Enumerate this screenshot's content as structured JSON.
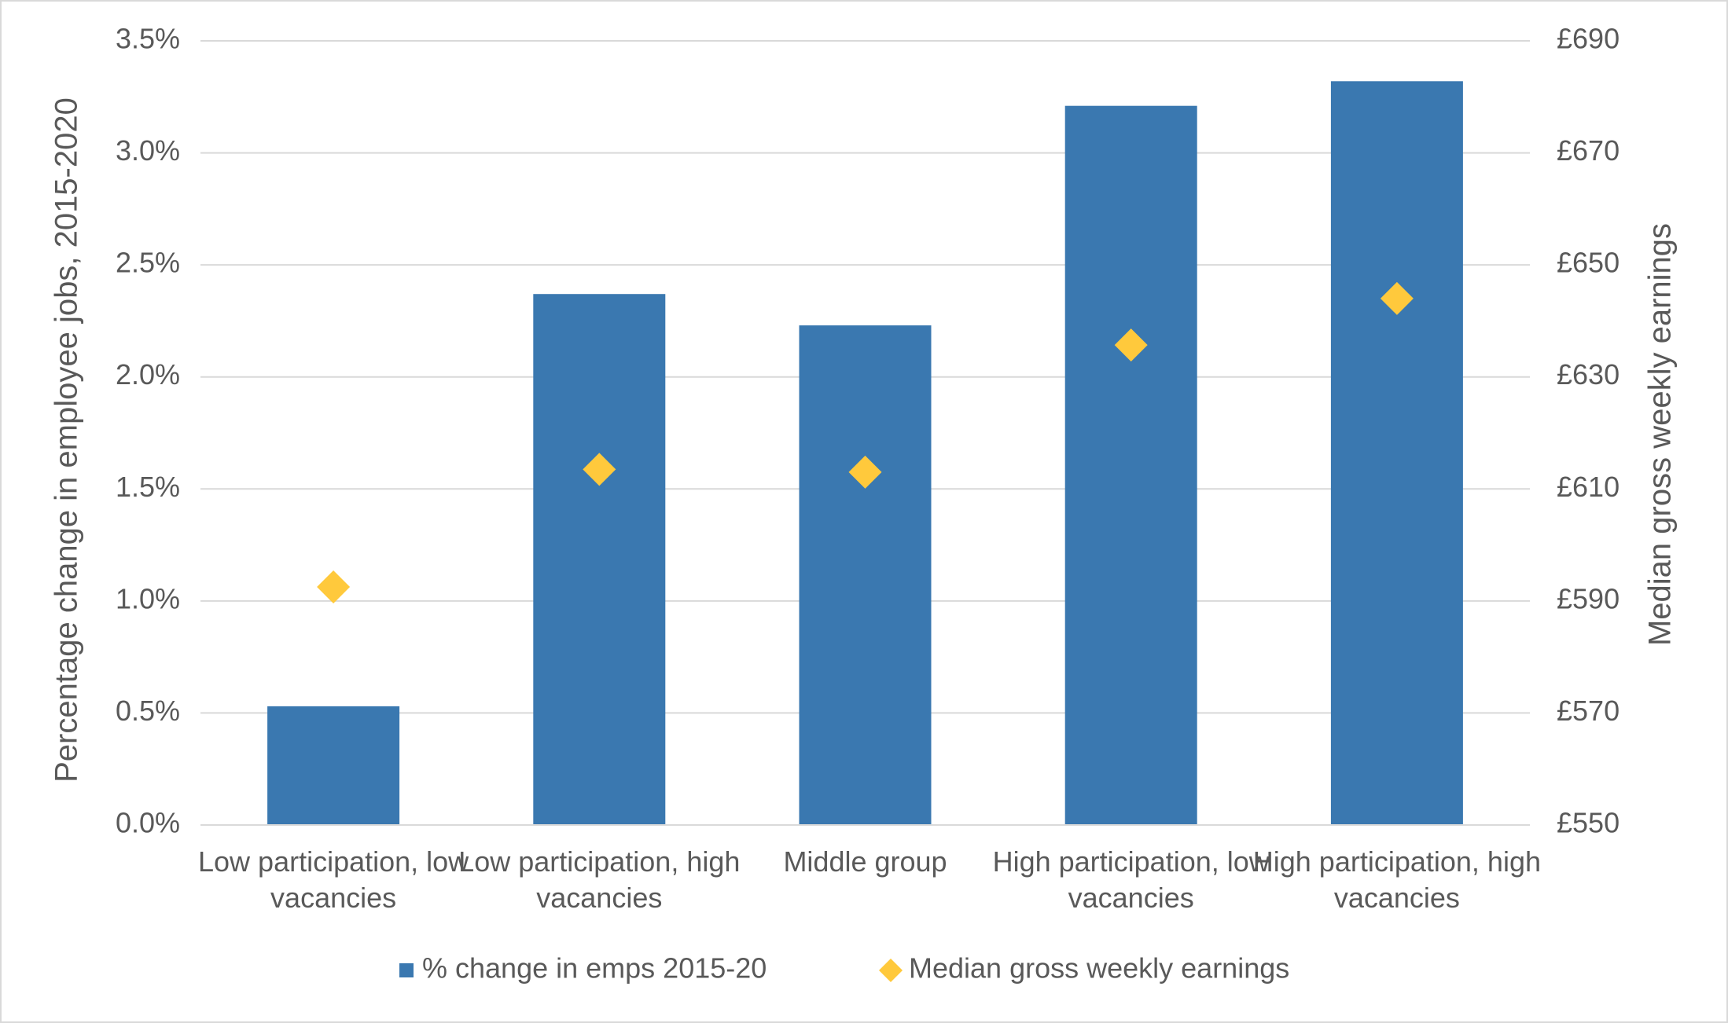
{
  "chart_data": {
    "type": "bar+scatter",
    "categories": [
      "Low participation, low vacancies",
      "Low participation, high vacancies",
      "Middle group",
      "High participation, low vacancies",
      "High participation, high vacancies"
    ],
    "series": [
      {
        "name": "% change in emps 2015-20",
        "color": "#3a78b0",
        "type": "bar",
        "values": [
          0.53,
          2.37,
          2.23,
          3.21,
          3.32
        ]
      },
      {
        "name": "Median gross weekly earnings",
        "color": "#ffc93c",
        "type": "scatter",
        "axis": "y2",
        "values": [
          592.5,
          613.5,
          613,
          635.7,
          644
        ]
      }
    ],
    "ylabel": "Percentage change in employee jobs, 2015-2020",
    "y2label": "Median gross weekly earnings",
    "ylim": [
      0,
      3.5
    ],
    "yticks": [
      {
        "value": 0,
        "label": "0.0%"
      },
      {
        "value": 0.5,
        "label": "0.5%"
      },
      {
        "value": 1,
        "label": "1.0%"
      },
      {
        "value": 1.5,
        "label": "1.5%"
      },
      {
        "value": 2,
        "label": "2.0%"
      },
      {
        "value": 2.5,
        "label": "2.5%"
      },
      {
        "value": 3,
        "label": "3.0%"
      },
      {
        "value": 3.5,
        "label": "3.5%"
      }
    ],
    "y2lim": [
      550,
      690
    ],
    "y2ticks": [
      {
        "value": 550,
        "label": "£550"
      },
      {
        "value": 570,
        "label": "£570"
      },
      {
        "value": 590,
        "label": "£590"
      },
      {
        "value": 610,
        "label": "£610"
      },
      {
        "value": 630,
        "label": "£630"
      },
      {
        "value": 650,
        "label": "£650"
      },
      {
        "value": 670,
        "label": "£670"
      },
      {
        "value": 690,
        "label": "£690"
      }
    ],
    "grid": true,
    "legend": "bottom"
  }
}
